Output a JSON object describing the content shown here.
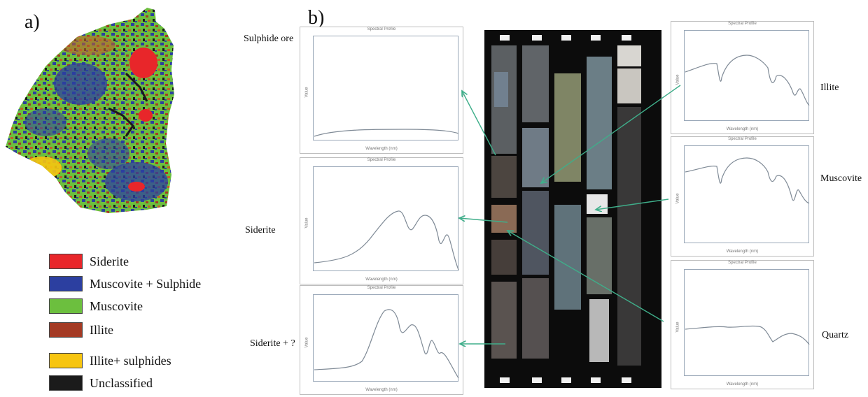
{
  "panels": {
    "a": "a)",
    "b": "b)"
  },
  "legend": [
    {
      "label": "Siderite",
      "color": "#e8262a"
    },
    {
      "label": "Muscovite + Sulphide",
      "color": "#2c3fa0"
    },
    {
      "label": "Muscovite",
      "color": "#6cbf3e"
    },
    {
      "label": "Illite",
      "color": "#a43a24"
    },
    {
      "label": "Illite+ sulphides",
      "color": "#f7c510"
    },
    {
      "label": "Unclassified",
      "color": "#1b1b1b"
    }
  ],
  "mineral_labels": {
    "sulphide_ore": "Sulphide ore",
    "siderite": "Siderite",
    "siderite_q": "Siderite + ?",
    "illite": "Illite",
    "muscovite": "Muscovite",
    "quartz": "Quartz"
  },
  "spectra_common": {
    "title": "Spectral Profile",
    "xlabel": "Wavelength (nm)",
    "ylabel": "Value"
  },
  "colors": {
    "arrow": "#3fae8a",
    "curve": "#7f8a96"
  }
}
